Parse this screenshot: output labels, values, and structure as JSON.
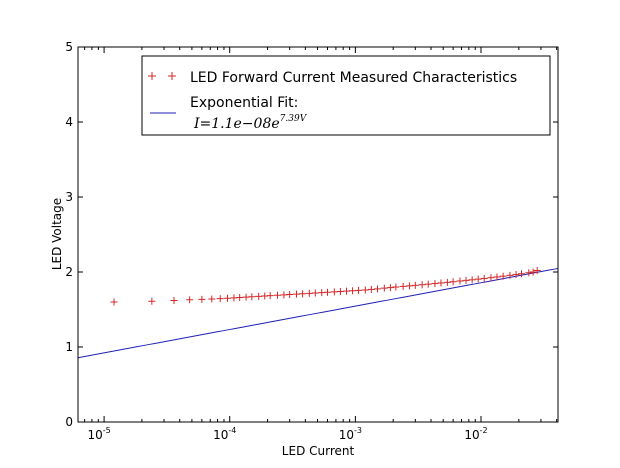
{
  "chart_data": {
    "type": "scatter",
    "xlabel": "LED Current",
    "ylabel": "LED Voltage",
    "xscale": "log",
    "xlim": [
      6.2e-06,
      0.041
    ],
    "ylim": [
      0,
      5
    ],
    "x_ticks": [
      {
        "base": "10",
        "exp": "-5",
        "value": 1e-05
      },
      {
        "base": "10",
        "exp": "-4",
        "value": 0.0001
      },
      {
        "base": "10",
        "exp": "-3",
        "value": 0.001
      },
      {
        "base": "10",
        "exp": "-2",
        "value": 0.01
      }
    ],
    "y_ticks": [
      "0",
      "1",
      "2",
      "3",
      "4",
      "5"
    ],
    "grid": false,
    "legend_position": "top-right",
    "series": [
      {
        "name": "LED Forward Current Measured Characteristics",
        "marker": "+",
        "color": "#d62728",
        "points_described": {
          "x_start": 1.2e-05,
          "x_end": 0.028,
          "y_start": 1.6,
          "y_end": 2.02
        }
      },
      {
        "name": "Exponential Fit:",
        "formula": {
          "lhs": "I",
          "rhs": "=1.1e−08e",
          "exp": "7.39V"
        },
        "marker": "line",
        "color": "#1f1fb4",
        "fit": {
          "a": 1.1e-08,
          "b": 7.39
        }
      }
    ],
    "measured": {
      "x": [
        1.2e-05,
        2.4e-05,
        3.6e-05,
        4.8e-05,
        6e-05,
        7.2e-05,
        8.4e-05,
        9.6e-05,
        0.000108,
        0.00012,
        0.000135,
        0.00015,
        0.00017,
        0.00019,
        0.00021,
        0.00024,
        0.00027,
        0.0003,
        0.00034,
        0.00038,
        0.00043,
        0.00048,
        0.00054,
        0.0006,
        0.00068,
        0.00076,
        0.00085,
        0.00095,
        0.00106,
        0.0012,
        0.00134,
        0.0015,
        0.0017,
        0.0019,
        0.0021,
        0.0024,
        0.0027,
        0.003,
        0.0034,
        0.0038,
        0.0043,
        0.0048,
        0.0054,
        0.006,
        0.0068,
        0.0076,
        0.0085,
        0.0095,
        0.0106,
        0.012,
        0.0134,
        0.015,
        0.017,
        0.019,
        0.021,
        0.024,
        0.026,
        0.028
      ],
      "y": [
        1.6,
        1.61,
        1.62,
        1.63,
        1.635,
        1.64,
        1.645,
        1.65,
        1.655,
        1.66,
        1.665,
        1.67,
        1.675,
        1.68,
        1.685,
        1.69,
        1.695,
        1.7,
        1.705,
        1.71,
        1.715,
        1.72,
        1.725,
        1.73,
        1.735,
        1.74,
        1.745,
        1.75,
        1.755,
        1.76,
        1.768,
        1.775,
        1.785,
        1.792,
        1.8,
        1.808,
        1.815,
        1.822,
        1.83,
        1.838,
        1.846,
        1.854,
        1.862,
        1.87,
        1.88,
        1.888,
        1.896,
        1.905,
        1.914,
        1.924,
        1.934,
        1.944,
        1.955,
        1.966,
        1.977,
        1.99,
        2.0,
        2.02
      ]
    }
  }
}
